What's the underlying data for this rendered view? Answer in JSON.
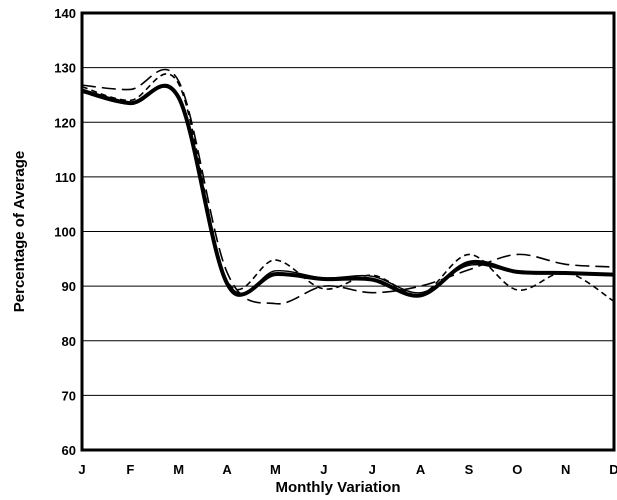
{
  "chart_data": {
    "type": "line",
    "title": "",
    "xlabel": "Monthly Variation",
    "ylabel": "Percentage of Average",
    "categories": [
      "J",
      "F",
      "M",
      "A",
      "M",
      "J",
      "J",
      "A",
      "S",
      "O",
      "N",
      "D"
    ],
    "ylim": [
      60,
      140
    ],
    "yticks": [
      60,
      70,
      80,
      90,
      100,
      110,
      120,
      130,
      140
    ],
    "grid": "horizontal",
    "legend": "none",
    "series": [
      {
        "style": "solid-thick",
        "color": "#000000",
        "values": [
          125.8,
          123.5,
          124.5,
          90.5,
          92.2,
          91.3,
          91.2,
          88.3,
          94.3,
          92.6,
          92.4,
          92.1
        ]
      },
      {
        "style": "long-dash",
        "color": "#000000",
        "values": [
          126.8,
          126.0,
          127.5,
          92.5,
          86.8,
          90.0,
          88.8,
          90.0,
          93.0,
          95.8,
          94.0,
          93.5
        ]
      },
      {
        "style": "short-dash",
        "color": "#000000",
        "values": [
          126.5,
          124.0,
          127.0,
          91.0,
          94.8,
          89.5,
          92.0,
          88.5,
          95.8,
          89.3,
          92.5,
          87.2
        ]
      },
      {
        "style": "solid-thin",
        "color": "#000000",
        "values": [
          125.5,
          123.3,
          124.8,
          90.0,
          92.8,
          91.5,
          91.8,
          88.8,
          93.8,
          92.5,
          92.2,
          92.0
        ]
      }
    ]
  }
}
